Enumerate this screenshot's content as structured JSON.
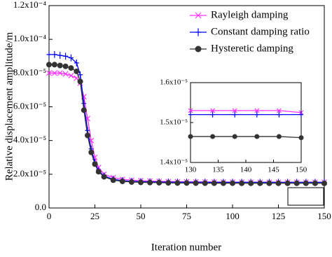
{
  "chart_data": [
    {
      "type": "line",
      "x_label": "Iteration number",
      "y_label": "Relative displacement amplitude/m",
      "x": [
        0,
        3,
        6,
        9,
        12,
        15,
        17,
        19,
        21,
        23,
        25,
        27,
        30,
        35,
        40,
        45,
        50,
        55,
        60,
        65,
        70,
        75,
        80,
        85,
        90,
        95,
        100,
        105,
        110,
        115,
        120,
        125,
        130,
        135,
        140,
        145,
        150
      ],
      "series": [
        {
          "name": "Rayleigh damping",
          "color": "#ff33ff",
          "marker": "x",
          "values": [
            8e-05,
            8e-05,
            8e-05,
            7.95e-05,
            7.85e-05,
            7.7e-05,
            7.4e-05,
            6.6e-05,
            5.3e-05,
            4e-05,
            3e-05,
            2.4e-05,
            2e-05,
            1.8e-05,
            1.7e-05,
            1.65e-05,
            1.62e-05,
            1.6e-05,
            1.58e-05,
            1.57e-05,
            1.56e-05,
            1.555e-05,
            1.55e-05,
            1.545e-05,
            1.54e-05,
            1.54e-05,
            1.535e-05,
            1.535e-05,
            1.53e-05,
            1.53e-05,
            1.53e-05,
            1.53e-05,
            1.53e-05,
            1.53e-05,
            1.53e-05,
            1.53e-05,
            1.53e-05
          ]
        },
        {
          "name": "Constant damping ratio",
          "color": "#0000ff",
          "marker": "+",
          "values": [
            9.1e-05,
            9.1e-05,
            9.05e-05,
            9e-05,
            8.9e-05,
            8.6e-05,
            7.9e-05,
            6.2e-05,
            4.6e-05,
            3.5e-05,
            2.7e-05,
            2.2e-05,
            1.9e-05,
            1.7e-05,
            1.62e-05,
            1.58e-05,
            1.56e-05,
            1.55e-05,
            1.54e-05,
            1.535e-05,
            1.53e-05,
            1.53e-05,
            1.525e-05,
            1.525e-05,
            1.52e-05,
            1.52e-05,
            1.52e-05,
            1.52e-05,
            1.52e-05,
            1.52e-05,
            1.52e-05,
            1.52e-05,
            1.52e-05,
            1.52e-05,
            1.52e-05,
            1.52e-05,
            1.52e-05
          ]
        },
        {
          "name": "Hysteretic damping",
          "color": "#333333",
          "marker": "o",
          "values": [
            8.5e-05,
            8.5e-05,
            8.45e-05,
            8.4e-05,
            8.3e-05,
            8.1e-05,
            7.5e-05,
            5.8e-05,
            4.3e-05,
            3.3e-05,
            2.6e-05,
            2.15e-05,
            1.85e-05,
            1.65e-05,
            1.58e-05,
            1.54e-05,
            1.52e-05,
            1.51e-05,
            1.5e-05,
            1.49e-05,
            1.48e-05,
            1.48e-05,
            1.475e-05,
            1.47e-05,
            1.47e-05,
            1.47e-05,
            1.47e-05,
            1.465e-05,
            1.465e-05,
            1.465e-05,
            1.465e-05,
            1.465e-05,
            1.465e-05,
            1.465e-05,
            1.465e-05,
            1.465e-05,
            1.46e-05
          ]
        }
      ],
      "xlim": [
        0,
        150
      ],
      "xticks": [
        0,
        25,
        50,
        75,
        100,
        125,
        150
      ],
      "ylim": [
        0,
        0.00012
      ],
      "yticks": [
        {
          "value": 0,
          "label": "0.0"
        },
        {
          "value": 2e-05,
          "label": "2.0x10⁻⁵"
        },
        {
          "value": 4e-05,
          "label": "4.0x10⁻⁵"
        },
        {
          "value": 6e-05,
          "label": "6.0x10⁻⁵"
        },
        {
          "value": 8e-05,
          "label": "8.0x10⁻⁵"
        },
        {
          "value": 0.0001,
          "label": "1.0x10⁻⁴"
        },
        {
          "value": 0.00012,
          "label": "1.2x10⁻⁴"
        }
      ],
      "legend": "upper right"
    },
    {
      "type": "line",
      "x": [
        130,
        134,
        138,
        142,
        146,
        150
      ],
      "series": [
        {
          "color": "#ff33ff",
          "marker": "x",
          "values": [
            1.53e-05,
            1.53e-05,
            1.53e-05,
            1.53e-05,
            1.53e-05,
            1.525e-05
          ]
        },
        {
          "color": "#0000ff",
          "marker": "+",
          "values": [
            1.52e-05,
            1.52e-05,
            1.52e-05,
            1.52e-05,
            1.52e-05,
            1.52e-05
          ]
        },
        {
          "color": "#333333",
          "marker": "o",
          "values": [
            1.465e-05,
            1.465e-05,
            1.465e-05,
            1.465e-05,
            1.465e-05,
            1.462e-05
          ]
        }
      ],
      "xlim": [
        130,
        150
      ],
      "xticks": [
        130,
        135,
        140,
        145,
        150
      ],
      "ylim": [
        1.4e-05,
        1.6e-05
      ],
      "yticks": [
        {
          "value": 1.4e-05,
          "label": "1.4x10⁻⁵"
        },
        {
          "value": 1.5e-05,
          "label": "1.5x10⁻⁵"
        },
        {
          "value": 1.6e-05,
          "label": "1.6x10⁻⁵"
        }
      ]
    }
  ]
}
